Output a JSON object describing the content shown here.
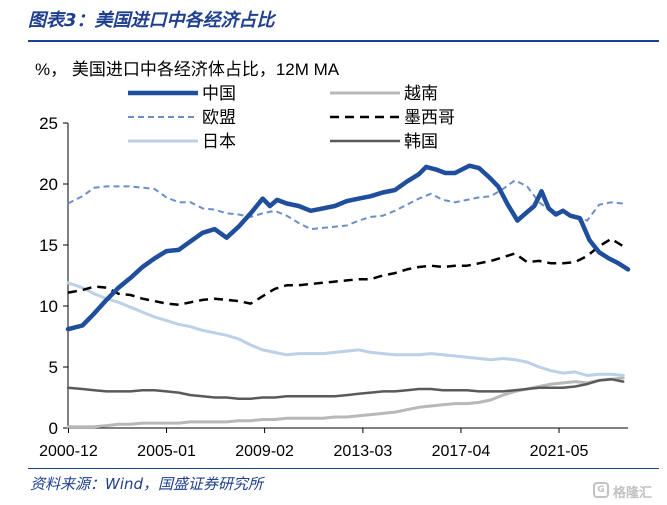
{
  "header": {
    "title": "图表3：美国进口中各经济占比"
  },
  "chart_data": {
    "type": "line",
    "title": "%， 美国进口中各经济体占比，12M MA",
    "xlabel": "",
    "ylabel": "",
    "ylim": [
      0,
      25
    ],
    "yticks": [
      "0",
      "5",
      "10",
      "15",
      "20",
      "25"
    ],
    "xlim": [
      2000.9,
      2024.2
    ],
    "xticks": [
      {
        "value": 2000.92,
        "label": "2000-12"
      },
      {
        "value": 2005.0,
        "label": "2005-01"
      },
      {
        "value": 2009.08,
        "label": "2009-02"
      },
      {
        "value": 2013.17,
        "label": "2013-03"
      },
      {
        "value": 2017.25,
        "label": "2017-04"
      },
      {
        "value": 2021.33,
        "label": "2021-05"
      }
    ],
    "grid": false,
    "legend_placement": "top",
    "series": [
      {
        "name": "中国",
        "color": "#1f4e9c",
        "dash": "solid",
        "width": 4.5,
        "x": [
          2000.9,
          2001.5,
          2002.0,
          2002.5,
          2003.0,
          2003.5,
          2004.0,
          2004.5,
          2005.0,
          2005.5,
          2006.0,
          2006.5,
          2007.0,
          2007.5,
          2008.0,
          2008.5,
          2009.0,
          2009.3,
          2009.6,
          2010.0,
          2010.5,
          2011.0,
          2011.5,
          2012.0,
          2012.5,
          2013.0,
          2013.5,
          2014.0,
          2014.5,
          2015.0,
          2015.5,
          2015.8,
          2016.2,
          2016.6,
          2017.0,
          2017.3,
          2017.6,
          2018.0,
          2018.4,
          2018.8,
          2019.2,
          2019.6,
          2020.0,
          2020.3,
          2020.6,
          2020.9,
          2021.2,
          2021.5,
          2021.8,
          2022.2,
          2022.6,
          2023.0,
          2023.4,
          2023.8,
          2024.2
        ],
        "y": [
          8.1,
          8.4,
          9.4,
          10.5,
          11.5,
          12.3,
          13.2,
          13.9,
          14.5,
          14.6,
          15.3,
          16.0,
          16.3,
          15.6,
          16.5,
          17.6,
          18.8,
          18.2,
          18.7,
          18.4,
          18.2,
          17.8,
          18.0,
          18.2,
          18.6,
          18.8,
          19.0,
          19.3,
          19.5,
          20.2,
          20.8,
          21.4,
          21.2,
          20.9,
          20.9,
          21.2,
          21.5,
          21.3,
          20.6,
          19.8,
          18.3,
          17.0,
          17.7,
          18.2,
          19.4,
          18.0,
          17.5,
          17.8,
          17.4,
          17.2,
          15.4,
          14.4,
          13.9,
          13.5,
          13.0
        ]
      },
      {
        "name": "欧盟",
        "color": "#6c8fc8",
        "dash": "6,4",
        "width": 2,
        "x": [
          2000.9,
          2001.5,
          2002.0,
          2002.5,
          2003.0,
          2003.5,
          2004.0,
          2004.5,
          2005.0,
          2005.5,
          2006.0,
          2006.5,
          2007.0,
          2007.5,
          2008.0,
          2008.5,
          2009.0,
          2009.5,
          2010.0,
          2010.5,
          2011.0,
          2011.5,
          2012.0,
          2012.5,
          2013.0,
          2013.5,
          2014.0,
          2014.5,
          2015.0,
          2015.5,
          2016.0,
          2016.5,
          2017.0,
          2017.5,
          2018.0,
          2018.5,
          2019.0,
          2019.5,
          2020.0,
          2020.5,
          2021.0,
          2021.5,
          2022.0,
          2022.5,
          2023.0,
          2023.5,
          2024.0
        ],
        "y": [
          18.4,
          19.0,
          19.7,
          19.8,
          19.8,
          19.8,
          19.7,
          19.6,
          18.9,
          18.5,
          18.5,
          18.0,
          17.9,
          17.6,
          17.5,
          17.3,
          17.6,
          17.8,
          17.4,
          16.8,
          16.3,
          16.4,
          16.5,
          16.6,
          17.0,
          17.3,
          17.4,
          17.8,
          18.3,
          18.8,
          19.2,
          18.7,
          18.5,
          18.7,
          18.9,
          19.0,
          19.6,
          20.3,
          19.8,
          18.5,
          17.8,
          17.6,
          17.4,
          17.0,
          18.3,
          18.5,
          18.4
        ]
      },
      {
        "name": "日本",
        "color": "#bcd0e8",
        "dash": "solid",
        "width": 3,
        "x": [
          2000.9,
          2001.5,
          2002.0,
          2002.5,
          2003.0,
          2003.5,
          2004.0,
          2004.5,
          2005.0,
          2005.5,
          2006.0,
          2006.5,
          2007.0,
          2007.5,
          2008.0,
          2008.5,
          2009.0,
          2009.5,
          2010.0,
          2010.5,
          2011.0,
          2011.5,
          2012.0,
          2012.5,
          2013.0,
          2013.5,
          2014.0,
          2014.5,
          2015.0,
          2015.5,
          2016.0,
          2016.5,
          2017.0,
          2017.5,
          2018.0,
          2018.5,
          2019.0,
          2019.5,
          2020.0,
          2020.5,
          2021.0,
          2021.5,
          2022.0,
          2022.5,
          2023.0,
          2023.5,
          2024.0
        ],
        "y": [
          11.9,
          11.5,
          11.0,
          10.6,
          10.3,
          9.9,
          9.5,
          9.1,
          8.8,
          8.5,
          8.3,
          8.0,
          7.8,
          7.6,
          7.3,
          6.8,
          6.4,
          6.2,
          6.0,
          6.1,
          6.1,
          6.1,
          6.2,
          6.3,
          6.4,
          6.2,
          6.1,
          6.0,
          6.0,
          6.0,
          6.1,
          6.0,
          5.9,
          5.8,
          5.7,
          5.6,
          5.7,
          5.6,
          5.4,
          5.0,
          4.7,
          4.5,
          4.6,
          4.3,
          4.4,
          4.4,
          4.3
        ]
      },
      {
        "name": "越南",
        "color": "#b8b8b8",
        "dash": "solid",
        "width": 3,
        "x": [
          2000.9,
          2001.5,
          2002.0,
          2002.5,
          2003.0,
          2003.5,
          2004.0,
          2004.5,
          2005.0,
          2005.5,
          2006.0,
          2006.5,
          2007.0,
          2007.5,
          2008.0,
          2008.5,
          2009.0,
          2009.5,
          2010.0,
          2010.5,
          2011.0,
          2011.5,
          2012.0,
          2012.5,
          2013.0,
          2013.5,
          2014.0,
          2014.5,
          2015.0,
          2015.5,
          2016.0,
          2016.5,
          2017.0,
          2017.5,
          2018.0,
          2018.5,
          2019.0,
          2019.5,
          2020.0,
          2020.5,
          2021.0,
          2021.5,
          2022.0,
          2022.5,
          2023.0,
          2023.5,
          2024.0
        ],
        "y": [
          0.1,
          0.1,
          0.1,
          0.2,
          0.3,
          0.3,
          0.4,
          0.4,
          0.4,
          0.4,
          0.5,
          0.5,
          0.5,
          0.5,
          0.6,
          0.6,
          0.7,
          0.7,
          0.8,
          0.8,
          0.8,
          0.8,
          0.9,
          0.9,
          1.0,
          1.1,
          1.2,
          1.3,
          1.5,
          1.7,
          1.8,
          1.9,
          2.0,
          2.0,
          2.1,
          2.3,
          2.7,
          3.0,
          3.2,
          3.4,
          3.6,
          3.7,
          3.8,
          3.7,
          3.9,
          4.0,
          4.1
        ]
      },
      {
        "name": "墨西哥",
        "color": "#000000",
        "dash": "9,6",
        "width": 2.5,
        "x": [
          2000.9,
          2001.5,
          2002.0,
          2002.5,
          2003.0,
          2003.5,
          2004.0,
          2004.5,
          2005.0,
          2005.5,
          2006.0,
          2006.5,
          2007.0,
          2007.5,
          2008.0,
          2008.5,
          2009.0,
          2009.5,
          2010.0,
          2010.5,
          2011.0,
          2011.5,
          2012.0,
          2012.5,
          2013.0,
          2013.5,
          2014.0,
          2014.5,
          2015.0,
          2015.5,
          2016.0,
          2016.5,
          2017.0,
          2017.5,
          2018.0,
          2018.5,
          2019.0,
          2019.5,
          2020.0,
          2020.5,
          2021.0,
          2021.5,
          2022.0,
          2022.5,
          2023.0,
          2023.5,
          2024.0
        ],
        "y": [
          11.1,
          11.3,
          11.6,
          11.5,
          11.0,
          10.9,
          10.6,
          10.4,
          10.2,
          10.1,
          10.3,
          10.5,
          10.6,
          10.5,
          10.4,
          10.2,
          10.8,
          11.4,
          11.7,
          11.7,
          11.8,
          11.9,
          12.0,
          12.1,
          12.2,
          12.2,
          12.5,
          12.7,
          13.0,
          13.2,
          13.3,
          13.2,
          13.3,
          13.3,
          13.5,
          13.7,
          14.0,
          14.3,
          13.6,
          13.7,
          13.5,
          13.5,
          13.6,
          14.1,
          14.9,
          15.5,
          14.9
        ]
      },
      {
        "name": "韩国",
        "color": "#5a5a5a",
        "dash": "solid",
        "width": 2.5,
        "x": [
          2000.9,
          2001.5,
          2002.0,
          2002.5,
          2003.0,
          2003.5,
          2004.0,
          2004.5,
          2005.0,
          2005.5,
          2006.0,
          2006.5,
          2007.0,
          2007.5,
          2008.0,
          2008.5,
          2009.0,
          2009.5,
          2010.0,
          2010.5,
          2011.0,
          2011.5,
          2012.0,
          2012.5,
          2013.0,
          2013.5,
          2014.0,
          2014.5,
          2015.0,
          2015.5,
          2016.0,
          2016.5,
          2017.0,
          2017.5,
          2018.0,
          2018.5,
          2019.0,
          2019.5,
          2020.0,
          2020.5,
          2021.0,
          2021.5,
          2022.0,
          2022.5,
          2023.0,
          2023.5,
          2024.0
        ],
        "y": [
          3.3,
          3.2,
          3.1,
          3.0,
          3.0,
          3.0,
          3.1,
          3.1,
          3.0,
          2.9,
          2.7,
          2.6,
          2.5,
          2.5,
          2.4,
          2.4,
          2.5,
          2.5,
          2.6,
          2.6,
          2.6,
          2.6,
          2.6,
          2.7,
          2.8,
          2.9,
          3.0,
          3.0,
          3.1,
          3.2,
          3.2,
          3.1,
          3.1,
          3.1,
          3.0,
          3.0,
          3.0,
          3.1,
          3.2,
          3.3,
          3.3,
          3.3,
          3.4,
          3.6,
          3.9,
          4.0,
          3.8
        ]
      }
    ]
  },
  "source": {
    "text": "资料来源：Wind，国盛证券研究所"
  },
  "watermark": {
    "text": "格隆汇"
  }
}
